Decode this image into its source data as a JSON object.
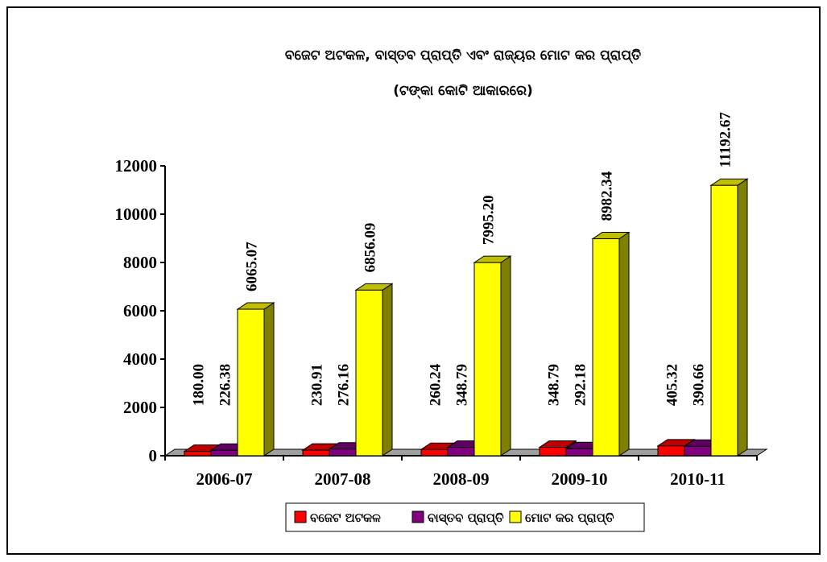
{
  "chart_data": {
    "type": "bar3d",
    "title": "ବଜେଟ ଅଟକଳ, ବାସ୍ତବ ପ୍ରାପ୍ତି ଏବଂ ରାଜ୍ୟର ମୋଟ କର ପ୍ରାପ୍ତି",
    "subtitle": "(ଟଙ୍କା କୋଟି ଆକାରରେ)",
    "categories": [
      "2006-07",
      "2007-08",
      "2008-09",
      "2009-10",
      "2010-11"
    ],
    "series": [
      {
        "name": "ବଜେଟ ଅଟକଳ",
        "color": "#ff0000",
        "values": [
          180,
          230.91,
          260.24,
          348.79,
          405.32
        ],
        "value_labels": [
          "180.00",
          "230.91",
          "260.24",
          "348.79",
          "405.32"
        ]
      },
      {
        "name": "ବାସ୍ତବ ପ୍ରାପ୍ତି",
        "color": "#800080",
        "values": [
          226.38,
          276.16,
          348.79,
          292.18,
          390.66
        ],
        "value_labels": [
          "226.38",
          "276.16",
          "348.79",
          "292.18",
          "390.66"
        ]
      },
      {
        "name": "ମୋଟ କର ପ୍ରାପ୍ତି",
        "color": "#ffff00",
        "values": [
          6065.07,
          6856.09,
          7995.2,
          8982.34,
          11192.67
        ],
        "value_labels": [
          "6065.07",
          "6856.09",
          "7995.20",
          "8982.34",
          "11192.67"
        ]
      }
    ],
    "ylim": [
      0,
      12000
    ],
    "yticks": [
      0,
      2000,
      4000,
      6000,
      8000,
      10000,
      12000
    ],
    "legend": "bottom"
  }
}
